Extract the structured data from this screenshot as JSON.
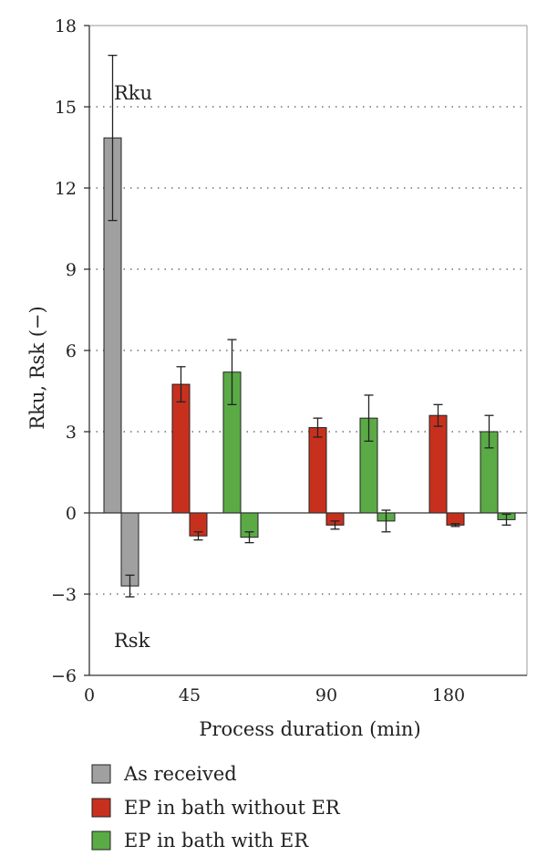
{
  "chart_data": {
    "type": "bar",
    "xlabel": "Process duration (min)",
    "ylabel": "Rku, Rsk (−)",
    "ylim": [
      -6,
      18
    ],
    "yticks": [
      -6,
      -3,
      0,
      3,
      6,
      9,
      12,
      15,
      18
    ],
    "ytick_labels": [
      "−6",
      "−3",
      "0",
      "3",
      "6",
      "9",
      "12",
      "15",
      "18"
    ],
    "categories": [
      "0",
      "45",
      "90",
      "180"
    ],
    "grid": "horizontal-dotted",
    "legend_position": "bottom",
    "colors": {
      "As received": "#a0a0a0",
      "EP in bath without ER": "#c8301e",
      "EP in bath with ER": "#5aab46"
    },
    "series": [
      {
        "name": "As received",
        "color": "#a0a0a0",
        "rku": [
          13.85,
          null,
          null,
          null
        ],
        "rku_err": [
          3.05,
          null,
          null,
          null
        ],
        "rsk": [
          -2.7,
          null,
          null,
          null
        ],
        "rsk_err": [
          0.4,
          null,
          null,
          null
        ]
      },
      {
        "name": "EP in bath without ER",
        "color": "#c8301e",
        "rku": [
          null,
          4.75,
          3.15,
          3.6
        ],
        "rku_err": [
          null,
          0.65,
          0.35,
          0.4
        ],
        "rsk": [
          null,
          -0.85,
          -0.45,
          -0.45
        ],
        "rsk_err": [
          null,
          0.15,
          0.15,
          0.05
        ]
      },
      {
        "name": "EP in bath with ER",
        "color": "#5aab46",
        "rku": [
          null,
          5.2,
          3.5,
          3.0
        ],
        "rku_err": [
          null,
          1.2,
          0.85,
          0.6
        ],
        "rsk": [
          null,
          -0.9,
          -0.3,
          -0.25
        ],
        "rsk_err": [
          null,
          0.2,
          0.4,
          0.2
        ]
      }
    ],
    "annotations": [
      "Rku",
      "Rsk"
    ]
  }
}
